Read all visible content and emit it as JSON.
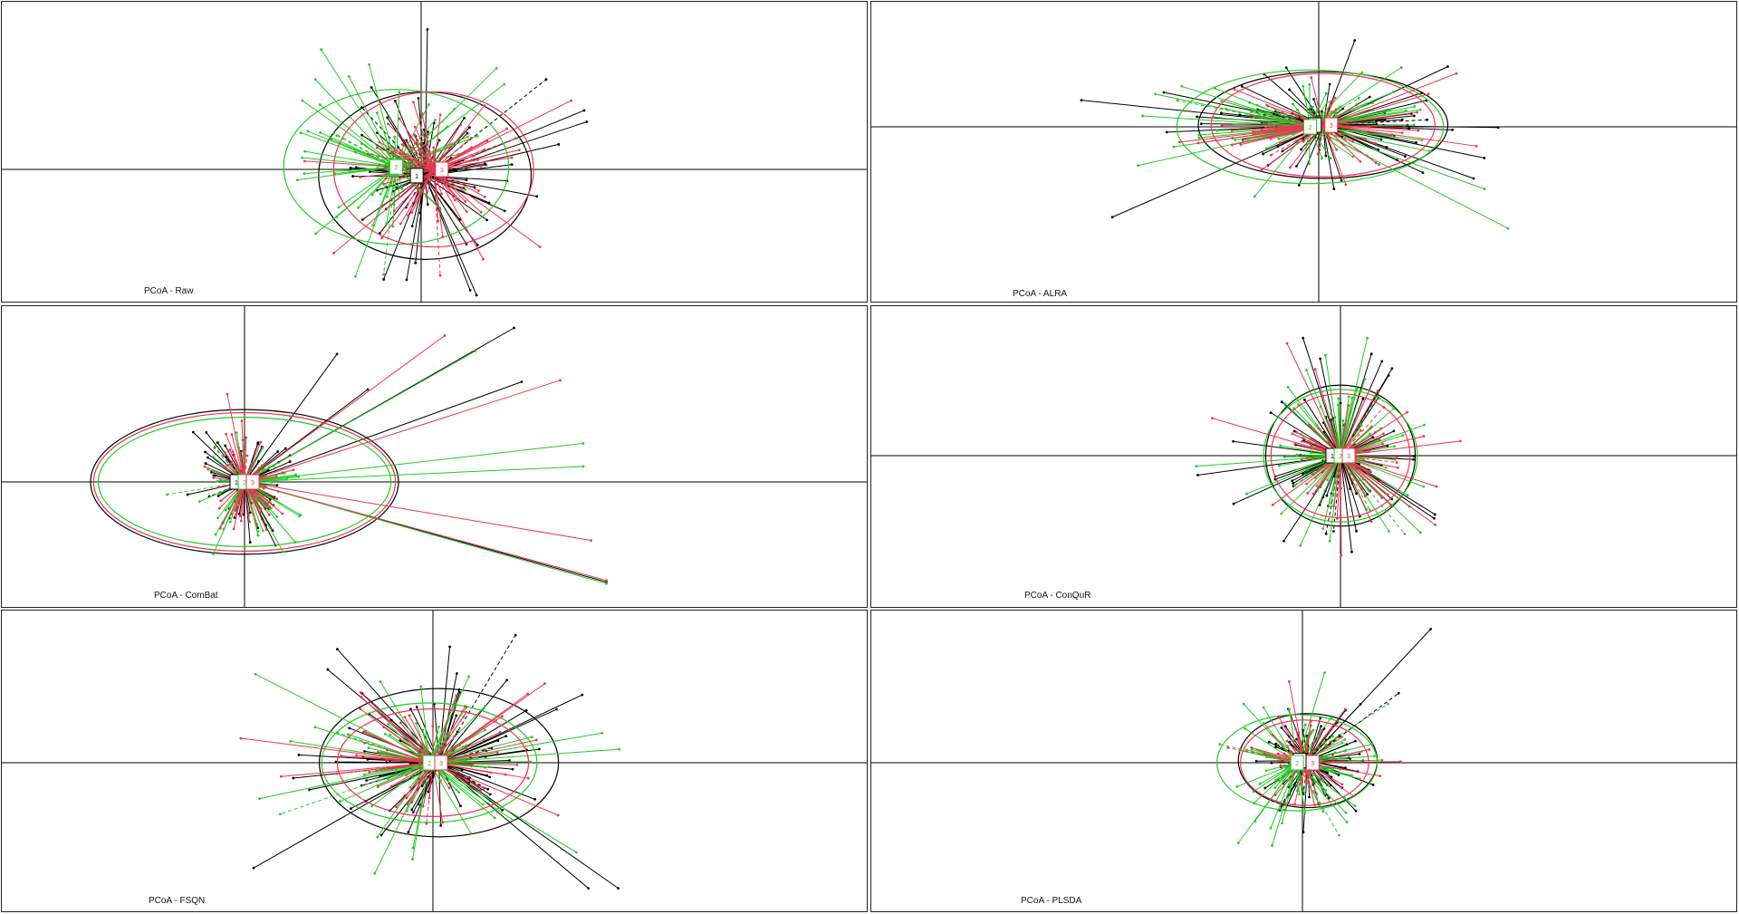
{
  "colors": {
    "group1": "#000000",
    "group2": "#22cc22",
    "group3": "#ee3355",
    "axis": "#000000"
  },
  "chart_data": [
    {
      "type": "scatter",
      "subtype": "PCoA s.class star plot with inertia ellipses",
      "title": "PCoA - Raw",
      "group_labels": [
        "1",
        "2",
        "3"
      ],
      "xlim": [
        -3.6,
        3.6
      ],
      "ylim": [
        -1.2,
        1.2
      ],
      "legend": "none",
      "grid": false,
      "series": [
        {
          "color": "group1",
          "centroid": [
            0.03,
            -0.05
          ],
          "ellipse": [
            0.85,
            0.67
          ],
          "spread": [
            0.7,
            0.62
          ],
          "outliers": [
            [
              0.05,
              1.12
            ],
            [
              1.0,
              0.72
            ],
            [
              -0.3,
              -0.88
            ],
            [
              1.1,
              0.2
            ]
          ],
          "n": 70,
          "seed": 11
        },
        {
          "color": "group2",
          "centroid": [
            -0.2,
            0.02
          ],
          "ellipse": [
            0.9,
            0.62
          ],
          "spread": [
            0.78,
            0.6
          ],
          "outliers": [
            [
              -0.8,
              0.96
            ],
            [
              -0.3,
              -0.84
            ],
            [
              -0.95,
              0.55
            ]
          ],
          "n": 70,
          "seed": 23
        },
        {
          "color": "group3",
          "centroid": [
            0.1,
            0.0
          ],
          "ellipse": [
            0.8,
            0.62
          ],
          "spread": [
            0.7,
            0.55
          ],
          "outliers": [
            [
              1.2,
              0.55
            ],
            [
              0.95,
              -0.62
            ]
          ],
          "n": 60,
          "seed": 37
        }
      ]
    },
    {
      "type": "scatter",
      "subtype": "PCoA s.class star plot with inertia ellipses",
      "title": "PCoA - ALRA",
      "group_labels": [
        "1",
        "2",
        "3"
      ],
      "xlim": [
        -3.6,
        3.6
      ],
      "ylim": [
        -1.2,
        1.2
      ],
      "legend": "none",
      "grid": false,
      "series": [
        {
          "color": "group1",
          "centroid": [
            0.05,
            0.02
          ],
          "ellipse": [
            1.45,
            0.62
          ],
          "spread": [
            1.3,
            0.5
          ],
          "outliers": [
            [
              -2.4,
              -1.05
            ],
            [
              1.8,
              -0.6
            ],
            [
              1.5,
              0.7
            ],
            [
              -1.8,
              0.4
            ]
          ],
          "n": 80,
          "seed": 51
        },
        {
          "color": "group2",
          "centroid": [
            -0.1,
            0.0
          ],
          "ellipse": [
            1.55,
            0.66
          ],
          "spread": [
            1.4,
            0.55
          ],
          "outliers": [
            [
              2.2,
              -1.18
            ],
            [
              -2.1,
              -0.45
            ],
            [
              -1.9,
              0.38
            ]
          ],
          "n": 80,
          "seed": 63
        },
        {
          "color": "group3",
          "centroid": [
            0.05,
            0.02
          ],
          "ellipse": [
            1.3,
            0.6
          ],
          "spread": [
            1.2,
            0.48
          ],
          "outliers": [
            [
              1.6,
              0.62
            ]
          ],
          "n": 55,
          "seed": 77
        }
      ]
    },
    {
      "type": "scatter",
      "subtype": "PCoA s.class star plot with inertia ellipses",
      "title": "PCoA - ComBat",
      "group_labels": [
        "1",
        "2",
        "3"
      ],
      "xlim": [
        -1.2,
        3.4
      ],
      "ylim": [
        -0.8,
        1.2
      ],
      "legend": "none",
      "grid": false,
      "series": [
        {
          "color": "group1",
          "centroid": [
            0.0,
            0.0
          ],
          "ellipse": [
            1.0,
            0.47
          ],
          "spread": [
            0.3,
            0.35
          ],
          "outliers": [
            [
              1.75,
              1.0
            ],
            [
              1.8,
              0.65
            ],
            [
              0.6,
              0.83
            ],
            [
              2.35,
              -0.65
            ],
            [
              0.8,
              0.6
            ]
          ],
          "n": 65,
          "seed": 89
        },
        {
          "color": "group2",
          "centroid": [
            0.0,
            0.0
          ],
          "ellipse": [
            0.95,
            0.42
          ],
          "spread": [
            0.3,
            0.33
          ],
          "outliers": [
            [
              2.2,
              0.25
            ],
            [
              1.5,
              0.85
            ],
            [
              2.35,
              -0.66
            ],
            [
              2.2,
              0.1
            ]
          ],
          "n": 65,
          "seed": 97
        },
        {
          "color": "group3",
          "centroid": [
            0.0,
            0.0
          ],
          "ellipse": [
            0.98,
            0.45
          ],
          "spread": [
            0.28,
            0.34
          ],
          "outliers": [
            [
              2.05,
              0.66
            ],
            [
              1.3,
              0.95
            ],
            [
              2.25,
              -0.38
            ],
            [
              2.35,
              -0.64
            ]
          ],
          "n": 55,
          "seed": 103
        }
      ]
    },
    {
      "type": "scatter",
      "subtype": "PCoA s.class star plot with inertia ellipses",
      "title": "PCoA - ConQuR",
      "group_labels": [
        "1",
        "2",
        "3"
      ],
      "xlim": [
        -3.6,
        3.6
      ],
      "ylim": [
        -1.2,
        1.2
      ],
      "legend": "none",
      "grid": false,
      "series": [
        {
          "color": "group1",
          "centroid": [
            0.0,
            0.0
          ],
          "ellipse": [
            0.7,
            0.66
          ],
          "spread": [
            0.62,
            0.7
          ],
          "outliers": [
            [
              -0.35,
              1.1
            ],
            [
              0.45,
              0.75
            ],
            [
              -1.0,
              -0.45
            ]
          ],
          "n": 75,
          "seed": 131
        },
        {
          "color": "group2",
          "centroid": [
            0.0,
            0.0
          ],
          "ellipse": [
            0.72,
            0.62
          ],
          "spread": [
            0.7,
            0.65
          ],
          "outliers": [
            [
              0.25,
              1.1
            ],
            [
              -1.35,
              -0.1
            ],
            [
              0.75,
              -0.72
            ]
          ],
          "n": 75,
          "seed": 149
        },
        {
          "color": "group3",
          "centroid": [
            0.0,
            0.0
          ],
          "ellipse": [
            0.65,
            0.58
          ],
          "spread": [
            0.6,
            0.6
          ],
          "outliers": [
            [
              -0.5,
              1.05
            ],
            [
              -1.2,
              0.35
            ]
          ],
          "n": 60,
          "seed": 157
        }
      ]
    },
    {
      "type": "scatter",
      "subtype": "PCoA s.class star plot with inertia ellipses",
      "title": "PCoA - FSQN",
      "group_labels": [
        "1",
        "2",
        "3"
      ],
      "xlim": [
        -3.6,
        3.6
      ],
      "ylim": [
        -1.2,
        1.2
      ],
      "legend": "none",
      "grid": false,
      "series": [
        {
          "color": "group1",
          "centroid": [
            0.05,
            0.0
          ],
          "ellipse": [
            1.0,
            0.62
          ],
          "spread": [
            0.85,
            0.55
          ],
          "outliers": [
            [
              -0.8,
              0.95
            ],
            [
              1.55,
              -1.05
            ],
            [
              -1.5,
              -0.88
            ],
            [
              1.3,
              -1.05
            ]
          ],
          "n": 75,
          "seed": 171
        },
        {
          "color": "group2",
          "centroid": [
            -0.03,
            0.0
          ],
          "ellipse": [
            0.9,
            0.5
          ],
          "spread": [
            0.85,
            0.55
          ],
          "outliers": [
            [
              0.3,
              0.72
            ],
            [
              1.2,
              -0.75
            ],
            [
              -1.45,
              -0.3
            ]
          ],
          "n": 75,
          "seed": 181
        },
        {
          "color": "group3",
          "centroid": [
            0.0,
            0.0
          ],
          "ellipse": [
            0.8,
            0.45
          ],
          "spread": [
            0.75,
            0.48
          ],
          "outliers": [
            [
              -0.6,
              0.55
            ]
          ],
          "n": 55,
          "seed": 191
        }
      ]
    },
    {
      "type": "scatter",
      "subtype": "PCoA s.class star plot with inertia ellipses",
      "title": "PCoA - PLSDA",
      "group_labels": [
        "1",
        "2",
        "3"
      ],
      "xlim": [
        -3.6,
        3.6
      ],
      "ylim": [
        -1.2,
        1.2
      ],
      "legend": "none",
      "grid": false,
      "series": [
        {
          "color": "group1",
          "centroid": [
            0.05,
            0.02
          ],
          "ellipse": [
            0.65,
            0.44
          ],
          "spread": [
            0.55,
            0.48
          ],
          "outliers": [
            [
              1.2,
              1.25
            ],
            [
              0.9,
              0.65
            ],
            [
              0.5,
              -0.45
            ]
          ],
          "n": 70,
          "seed": 211
        },
        {
          "color": "group2",
          "centroid": [
            -0.05,
            0.0
          ],
          "ellipse": [
            0.75,
            0.45
          ],
          "spread": [
            0.62,
            0.5
          ],
          "outliers": [
            [
              -0.6,
              -0.75
            ],
            [
              0.8,
              0.55
            ],
            [
              -0.55,
              0.55
            ]
          ],
          "n": 70,
          "seed": 223
        },
        {
          "color": "group3",
          "centroid": [
            0.02,
            0.0
          ],
          "ellipse": [
            0.6,
            0.4
          ],
          "spread": [
            0.5,
            0.45
          ],
          "outliers": [
            [
              0.4,
              0.5
            ]
          ],
          "n": 55,
          "seed": 229
        }
      ]
    }
  ]
}
